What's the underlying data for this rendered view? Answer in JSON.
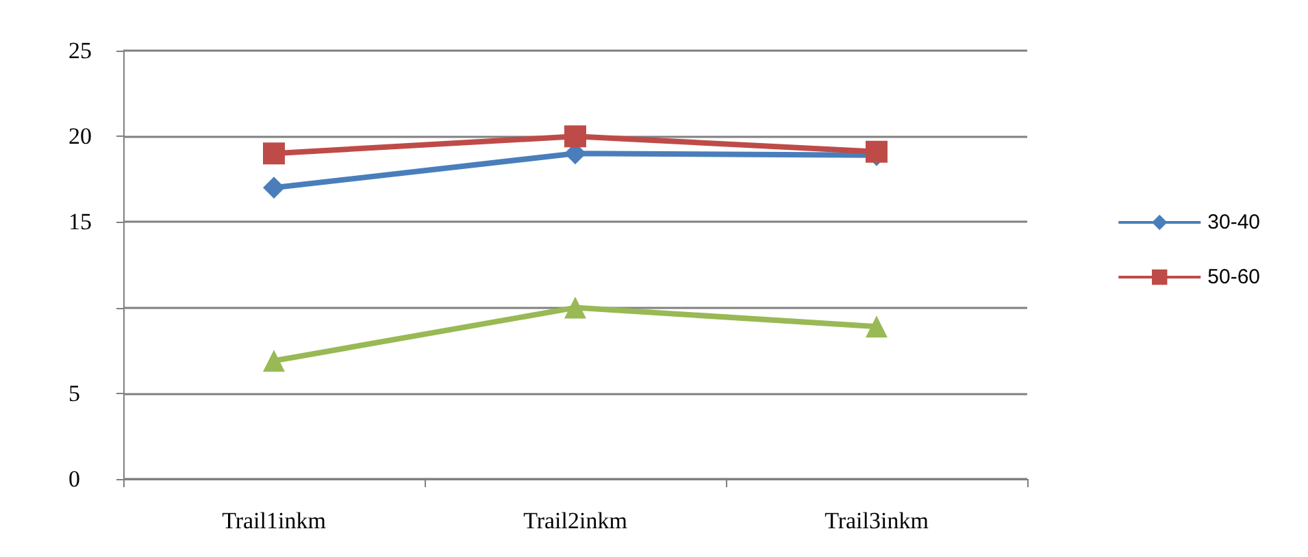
{
  "chart_data": {
    "type": "line",
    "categories": [
      "Trail1inkm",
      "Trail2inkm",
      "Trail3inkm"
    ],
    "series": [
      {
        "name": "30-40",
        "color": "#4a7ebb",
        "marker": "diamond",
        "values": [
          17.0,
          19.0,
          18.9
        ]
      },
      {
        "name": "50-60",
        "color": "#be4b48",
        "marker": "square",
        "values": [
          19.0,
          20.0,
          19.1
        ]
      },
      {
        "color": "#98b954",
        "marker": "triangle",
        "values": [
          6.9,
          10.0,
          8.9
        ]
      }
    ],
    "ylim": [
      0,
      25
    ],
    "yticks": [
      0,
      5,
      {
        "value": 10,
        "label": null
      },
      15,
      20,
      25
    ],
    "grid": "y",
    "legend": "right"
  }
}
